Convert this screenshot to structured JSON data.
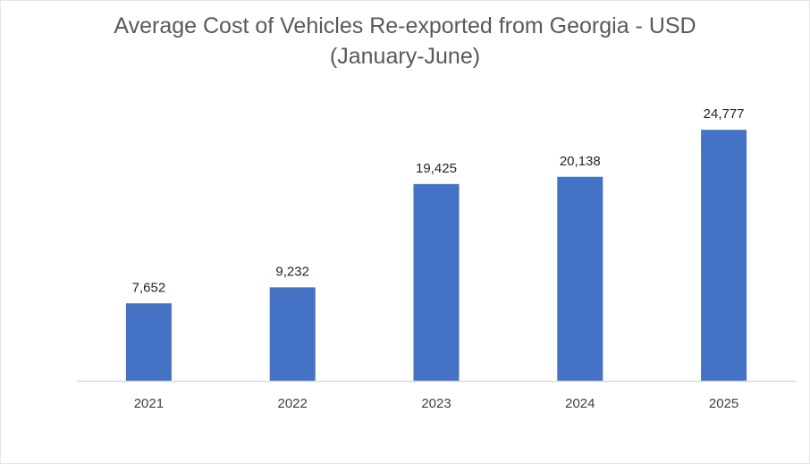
{
  "chart_data": {
    "type": "bar",
    "title": "Average Cost of Vehicles Re-exported from Georgia - USD",
    "subtitle": "(January-June)",
    "categories": [
      "2021",
      "2022",
      "2023",
      "2024",
      "2025"
    ],
    "values": [
      7652,
      9232,
      19425,
      20138,
      24777
    ],
    "value_labels": [
      "7,652",
      "9,232",
      "19,425",
      "20,138",
      "24,777"
    ],
    "xlabel": "",
    "ylabel": "",
    "ylim": [
      0,
      30000
    ],
    "grid": false,
    "legend": "none",
    "bar_color": "#4472C4",
    "axis_color": "#D9D9D9"
  }
}
